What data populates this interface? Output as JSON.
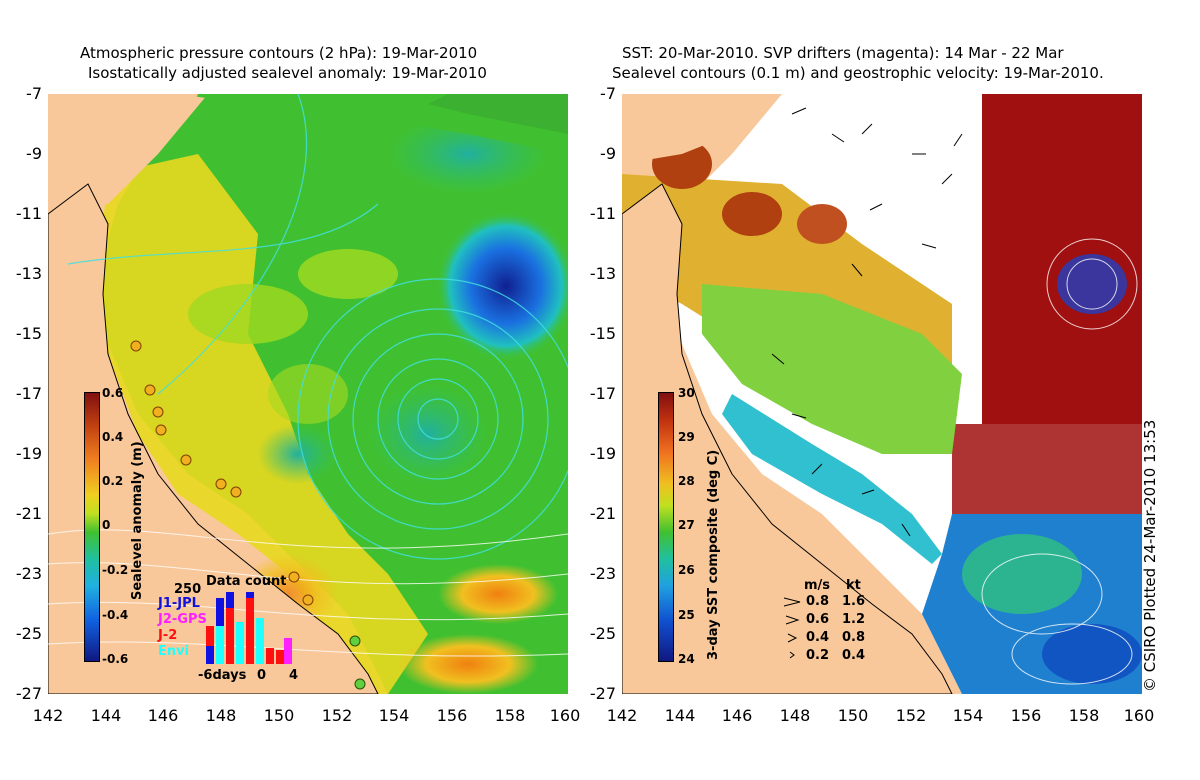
{
  "left_panel": {
    "title_line1": "Atmospheric pressure contours (2 hPa): 19-Mar-2010",
    "title_line2": "Isostatically adjusted sealevel anomaly: 19-Mar-2010",
    "colorbar_label": "Sealevel anomaly (m)",
    "colorbar_ticks": [
      "0.6",
      "0.4",
      "0.2",
      "0",
      "-0.2",
      "-0.4",
      "-0.6"
    ],
    "inset": {
      "title": "Data count",
      "max_label": "250",
      "series": [
        {
          "name": "J1-JPL",
          "color": "#1010e0"
        },
        {
          "name": "J2-GPS",
          "color": "#ff20ff"
        },
        {
          "name": "J-2",
          "color": "#ff1010"
        },
        {
          "name": "Envi",
          "color": "#20ffff"
        }
      ],
      "x_labels": [
        "-6days",
        "0",
        "4"
      ]
    }
  },
  "right_panel": {
    "title_line1": "SST: 20-Mar-2010. SVP drifters (magenta): 14 Mar - 22 Mar",
    "title_line2": "Sealevel contours (0.1 m) and geostrophic velocity: 19-Mar-2010.",
    "colorbar_label": "3-day SST composite (deg C)",
    "colorbar_ticks": [
      "30",
      "29",
      "28",
      "27",
      "26",
      "25",
      "24"
    ],
    "velocity_legend": {
      "header_ms": "m/s",
      "header_kt": "kt",
      "rows": [
        {
          "ms": "0.8",
          "kt": "1.6"
        },
        {
          "ms": "0.6",
          "kt": "1.2"
        },
        {
          "ms": "0.4",
          "kt": "0.8"
        },
        {
          "ms": "0.2",
          "kt": "0.4"
        }
      ]
    }
  },
  "y_ticks": [
    "-7",
    "-9",
    "-11",
    "-13",
    "-15",
    "-17",
    "-19",
    "-21",
    "-23",
    "-25",
    "-27"
  ],
  "x_ticks": [
    "142",
    "144",
    "146",
    "148",
    "150",
    "152",
    "154",
    "156",
    "158",
    "160"
  ],
  "stamp": "© CSIRO Plotted 24-Mar-2010 13:53",
  "colors": {
    "land": "#f8c89a",
    "ocean_green": "#40c030",
    "ocean_yellow": "#f0d020",
    "ocean_blue": "#1060e0",
    "sst_red": "#a01010"
  }
}
